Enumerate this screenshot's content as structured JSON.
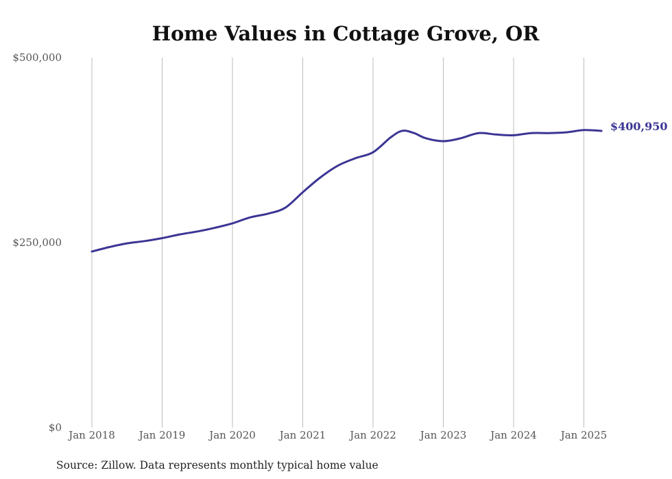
{
  "colors": {
    "series": "#3b3594",
    "title": "#111111",
    "tick_text": "#555555",
    "grid": "#bdbdbd"
  },
  "chart_data": {
    "type": "line",
    "title": "Home Values in Cottage Grove, OR",
    "xlabel": "",
    "ylabel": "",
    "source": "Source: Zillow. Data represents monthly typical home value",
    "grid": "vertical",
    "legend": "none",
    "ylim": [
      0,
      500000
    ],
    "yticks": [
      {
        "value": 0,
        "label": "$0"
      },
      {
        "value": 250000,
        "label": "$250,000"
      },
      {
        "value": 500000,
        "label": "$500,000"
      }
    ],
    "xlim": [
      "2018-01",
      "2025-04"
    ],
    "xticks": [
      {
        "date": "2018-01",
        "label": "Jan 2018"
      },
      {
        "date": "2019-01",
        "label": "Jan 2019"
      },
      {
        "date": "2020-01",
        "label": "Jan 2020"
      },
      {
        "date": "2021-01",
        "label": "Jan 2021"
      },
      {
        "date": "2022-01",
        "label": "Jan 2022"
      },
      {
        "date": "2023-01",
        "label": "Jan 2023"
      },
      {
        "date": "2024-01",
        "label": "Jan 2024"
      },
      {
        "date": "2025-01",
        "label": "Jan 2025"
      }
    ],
    "end_label": "$400,950",
    "series": [
      {
        "x": [
          "2018-01",
          "2018-04",
          "2018-07",
          "2018-10",
          "2019-01",
          "2019-04",
          "2019-07",
          "2019-10",
          "2020-01",
          "2020-04",
          "2020-07",
          "2020-10",
          "2021-01",
          "2021-04",
          "2021-07",
          "2021-10",
          "2022-01",
          "2022-04",
          "2022-06",
          "2022-08",
          "2022-10",
          "2023-01",
          "2023-04",
          "2023-07",
          "2023-10",
          "2024-01",
          "2024-04",
          "2024-07",
          "2024-10",
          "2025-01",
          "2025-04"
        ],
        "values": [
          238000,
          244000,
          249000,
          252000,
          256000,
          261000,
          265000,
          270000,
          276000,
          284000,
          289000,
          297000,
          318000,
          338000,
          354000,
          364000,
          372000,
          392000,
          401000,
          398000,
          391000,
          387000,
          391000,
          398000,
          396000,
          395000,
          398000,
          398000,
          399000,
          402000,
          400950
        ]
      }
    ]
  }
}
